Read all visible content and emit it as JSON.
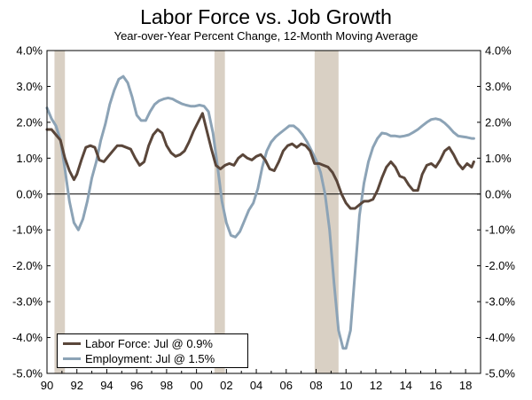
{
  "chart_data": {
    "type": "line",
    "title": "Labor Force vs. Job Growth",
    "subtitle": "Year-over-Year Percent Change, 12-Month Moving Average",
    "xlabel": "",
    "ylabel": "",
    "xlim": [
      1990,
      2019
    ],
    "ylim": [
      -5,
      4
    ],
    "x_tick_labels": [
      "90",
      "92",
      "94",
      "96",
      "98",
      "00",
      "02",
      "04",
      "06",
      "08",
      "10",
      "12",
      "14",
      "16",
      "18"
    ],
    "y_tick_labels_left": [
      "4.0%",
      "3.0%",
      "2.0%",
      "1.0%",
      "0.0%",
      "-1.0%",
      "-2.0%",
      "-3.0%",
      "-4.0%",
      "-5.0%"
    ],
    "y_tick_labels_right": [
      "4.0%",
      "3.0%",
      "2.0%",
      "1.0%",
      "0.0%",
      "-1.0%",
      "-2.0%",
      "-3.0%",
      "-4.0%",
      "-5.0%"
    ],
    "y_tick_values": [
      4,
      3,
      2,
      1,
      0,
      -1,
      -2,
      -3,
      -4,
      -5
    ],
    "x_tick_values": [
      1990,
      1992,
      1994,
      1996,
      1998,
      2000,
      2002,
      2004,
      2006,
      2008,
      2010,
      2012,
      2014,
      2016,
      2018
    ],
    "recessions": [
      [
        1990.5,
        1991.2
      ],
      [
        2001.2,
        2001.9
      ],
      [
        2007.9,
        2009.5
      ]
    ],
    "zero_line": true,
    "grid": false,
    "legend_position": "bottom-left",
    "series": [
      {
        "name": "Labor Force: Jul @ 0.9%",
        "color": "#5a463a",
        "x": [
          1990.0,
          1990.3,
          1990.6,
          1990.9,
          1991.2,
          1991.5,
          1991.8,
          1992.0,
          1992.3,
          1992.6,
          1992.9,
          1993.2,
          1993.5,
          1993.8,
          1994.1,
          1994.4,
          1994.7,
          1995.0,
          1995.3,
          1995.6,
          1995.9,
          1996.2,
          1996.5,
          1996.8,
          1997.1,
          1997.4,
          1997.7,
          1998.0,
          1998.3,
          1998.6,
          1998.9,
          1999.2,
          1999.5,
          1999.8,
          2000.1,
          2000.4,
          2000.7,
          2001.0,
          2001.3,
          2001.6,
          2001.9,
          2002.2,
          2002.5,
          2002.8,
          2003.1,
          2003.4,
          2003.7,
          2004.0,
          2004.3,
          2004.6,
          2004.9,
          2005.2,
          2005.5,
          2005.8,
          2006.1,
          2006.4,
          2006.7,
          2007.0,
          2007.3,
          2007.6,
          2007.9,
          2008.2,
          2008.5,
          2008.8,
          2009.1,
          2009.4,
          2009.7,
          2010.0,
          2010.3,
          2010.6,
          2010.9,
          2011.2,
          2011.5,
          2011.8,
          2012.1,
          2012.4,
          2012.7,
          2013.0,
          2013.3,
          2013.6,
          2013.9,
          2014.2,
          2014.5,
          2014.8,
          2015.1,
          2015.4,
          2015.7,
          2016.0,
          2016.3,
          2016.6,
          2016.9,
          2017.2,
          2017.5,
          2017.8,
          2018.1,
          2018.4,
          2018.55
        ],
        "values": [
          1.8,
          1.8,
          1.65,
          1.5,
          1.0,
          0.65,
          0.4,
          0.55,
          0.95,
          1.3,
          1.35,
          1.3,
          0.95,
          0.9,
          1.05,
          1.2,
          1.35,
          1.35,
          1.3,
          1.25,
          1.0,
          0.8,
          0.9,
          1.35,
          1.65,
          1.8,
          1.7,
          1.35,
          1.15,
          1.05,
          1.1,
          1.2,
          1.45,
          1.75,
          2.0,
          2.25,
          1.75,
          1.25,
          0.8,
          0.7,
          0.8,
          0.85,
          0.8,
          1.0,
          1.1,
          1.0,
          0.95,
          1.05,
          1.1,
          0.95,
          0.7,
          0.65,
          0.9,
          1.2,
          1.35,
          1.4,
          1.3,
          1.4,
          1.35,
          1.2,
          0.85,
          0.85,
          0.8,
          0.75,
          0.6,
          0.35,
          0.0,
          -0.25,
          -0.4,
          -0.4,
          -0.3,
          -0.2,
          -0.2,
          -0.15,
          0.1,
          0.45,
          0.75,
          0.9,
          0.75,
          0.5,
          0.45,
          0.25,
          0.1,
          0.1,
          0.55,
          0.8,
          0.85,
          0.75,
          0.95,
          1.2,
          1.3,
          1.1,
          0.85,
          0.7,
          0.85,
          0.75,
          0.9
        ]
      },
      {
        "name": "Employment: Jul @ 1.5%",
        "color": "#8ca3b6",
        "x": [
          1990.0,
          1990.3,
          1990.6,
          1990.9,
          1991.2,
          1991.5,
          1991.8,
          1992.1,
          1992.4,
          1992.7,
          1993.0,
          1993.3,
          1993.6,
          1993.9,
          1994.2,
          1994.5,
          1994.8,
          1995.1,
          1995.4,
          1995.7,
          1996.0,
          1996.3,
          1996.6,
          1996.9,
          1997.2,
          1997.5,
          1997.8,
          1998.1,
          1998.4,
          1998.7,
          1999.0,
          1999.3,
          1999.6,
          1999.9,
          2000.2,
          2000.5,
          2000.8,
          2001.1,
          2001.4,
          2001.7,
          2002.0,
          2002.3,
          2002.6,
          2002.9,
          2003.2,
          2003.5,
          2003.8,
          2004.1,
          2004.4,
          2004.7,
          2005.0,
          2005.3,
          2005.6,
          2005.9,
          2006.2,
          2006.5,
          2006.8,
          2007.1,
          2007.4,
          2007.7,
          2008.0,
          2008.3,
          2008.6,
          2008.9,
          2009.2,
          2009.5,
          2009.8,
          2010.0,
          2010.3,
          2010.6,
          2010.9,
          2011.2,
          2011.5,
          2011.8,
          2012.1,
          2012.4,
          2012.7,
          2013.0,
          2013.3,
          2013.6,
          2013.9,
          2014.2,
          2014.5,
          2014.8,
          2015.1,
          2015.4,
          2015.7,
          2016.0,
          2016.3,
          2016.6,
          2016.9,
          2017.2,
          2017.5,
          2017.8,
          2018.1,
          2018.4,
          2018.55
        ],
        "values": [
          2.4,
          2.1,
          1.9,
          1.5,
          0.7,
          -0.2,
          -0.8,
          -1.0,
          -0.7,
          -0.2,
          0.45,
          0.9,
          1.5,
          1.95,
          2.5,
          2.9,
          3.2,
          3.28,
          3.1,
          2.7,
          2.2,
          2.05,
          2.05,
          2.3,
          2.5,
          2.6,
          2.65,
          2.68,
          2.65,
          2.58,
          2.52,
          2.48,
          2.45,
          2.45,
          2.48,
          2.45,
          2.3,
          1.7,
          0.8,
          -0.2,
          -0.8,
          -1.15,
          -1.2,
          -1.05,
          -0.75,
          -0.45,
          -0.25,
          0.15,
          0.75,
          1.2,
          1.45,
          1.6,
          1.7,
          1.8,
          1.9,
          1.9,
          1.8,
          1.65,
          1.45,
          1.2,
          0.95,
          0.6,
          0.0,
          -1.0,
          -2.5,
          -3.8,
          -4.3,
          -4.3,
          -3.8,
          -2.2,
          -0.6,
          0.3,
          0.9,
          1.3,
          1.55,
          1.7,
          1.68,
          1.62,
          1.62,
          1.6,
          1.62,
          1.65,
          1.72,
          1.8,
          1.9,
          2.0,
          2.08,
          2.1,
          2.07,
          1.98,
          1.86,
          1.72,
          1.62,
          1.6,
          1.58,
          1.55,
          1.55
        ]
      }
    ]
  }
}
